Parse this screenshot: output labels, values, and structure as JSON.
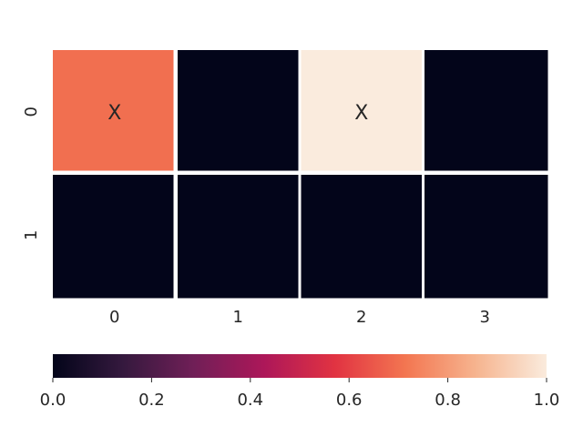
{
  "chart_data": {
    "type": "heatmap",
    "title": "",
    "xlabel": "",
    "ylabel": "",
    "x_categories": [
      "0",
      "1",
      "2",
      "3"
    ],
    "y_categories": [
      "0",
      "1"
    ],
    "values": [
      [
        0.7,
        0.0,
        1.0,
        0.0
      ],
      [
        0.0,
        0.0,
        0.0,
        0.0
      ]
    ],
    "annotations": [
      [
        "X",
        "",
        "X",
        ""
      ],
      [
        "",
        "",
        "",
        ""
      ]
    ],
    "value_range": [
      0.0,
      1.0
    ],
    "colorbar": {
      "orientation": "horizontal",
      "placement": "bottom",
      "ticks": [
        "0.0",
        "0.2",
        "0.4",
        "0.6",
        "0.8",
        "1.0"
      ]
    },
    "colormap": "rocket",
    "colormap_stops": [
      "#03051a",
      "#35193e",
      "#701f57",
      "#ad1759",
      "#e13342",
      "#f37651",
      "#f6b48f",
      "#faebdd"
    ],
    "cell_gap_color": "#ffffff",
    "annotation_color": "#262626",
    "grid": false
  }
}
